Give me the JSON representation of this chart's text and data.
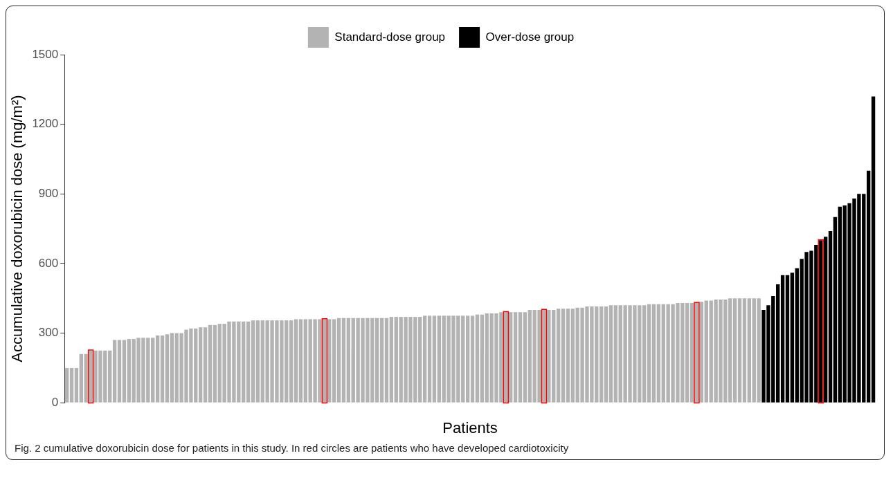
{
  "chart_data": {
    "type": "bar",
    "xlabel": "Patients",
    "ylabel": "Accumulative doxorubicin dose (mg/m²)",
    "ylim": [
      0,
      1500
    ],
    "yticks": [
      0,
      300,
      600,
      900,
      1200,
      1500
    ],
    "grid": false,
    "legend": "top",
    "stacked": true,
    "annotations": [
      "Fig. 2 cumulative doxorubicin dose for patients in this study. In red circles are patients who have developed cardiotoxicity"
    ],
    "categories": [
      null,
      null,
      null,
      null,
      null,
      null,
      null,
      null,
      null,
      null,
      null,
      null,
      null,
      null,
      null,
      null,
      null,
      null,
      null,
      null,
      null,
      null,
      null,
      null,
      null,
      null,
      null,
      null,
      null,
      null,
      null,
      null,
      null,
      null,
      null,
      null,
      null,
      null,
      null,
      null,
      null,
      null,
      null,
      null,
      null,
      null,
      null,
      null,
      null,
      null,
      null,
      null,
      null,
      null,
      null,
      null,
      null,
      null,
      null,
      null,
      null,
      null,
      null,
      null,
      null,
      null,
      null,
      null,
      null,
      null,
      null,
      null,
      null,
      null,
      null,
      null,
      null,
      null,
      null,
      null,
      null,
      null,
      null,
      null,
      null,
      null,
      null,
      null,
      null,
      null,
      null,
      null,
      null,
      null,
      null,
      null,
      null,
      null,
      null,
      null,
      null,
      null,
      null,
      null,
      null,
      null,
      null,
      null,
      null,
      null,
      null,
      null,
      null,
      null,
      null,
      null,
      null,
      null,
      null,
      null,
      null,
      null,
      null,
      null,
      null,
      null,
      null,
      null,
      null,
      null,
      null,
      null,
      null,
      null,
      null,
      null,
      null,
      null,
      null,
      null,
      null,
      null,
      null,
      null,
      null,
      null,
      null,
      null,
      null,
      null,
      null,
      null,
      null,
      null,
      null,
      null,
      null,
      null,
      null,
      null,
      null,
      null,
      null,
      null,
      null,
      null,
      null,
      null,
      null,
      null
    ],
    "series": [
      {
        "name": "Standard-dose group",
        "color": "#b3b3b3",
        "values": [
          150,
          150,
          150,
          210,
          210,
          225,
          225,
          225,
          225,
          225,
          270,
          270,
          270,
          275,
          275,
          280,
          280,
          280,
          280,
          290,
          290,
          295,
          300,
          300,
          300,
          315,
          320,
          320,
          325,
          325,
          335,
          335,
          340,
          340,
          350,
          350,
          350,
          350,
          350,
          355,
          355,
          355,
          355,
          355,
          355,
          355,
          355,
          355,
          360,
          360,
          360,
          360,
          360,
          360,
          360,
          360,
          360,
          365,
          365,
          365,
          365,
          365,
          365,
          365,
          365,
          365,
          365,
          365,
          370,
          370,
          370,
          370,
          370,
          370,
          370,
          375,
          375,
          375,
          375,
          375,
          375,
          375,
          375,
          375,
          375,
          375,
          380,
          380,
          385,
          385,
          385,
          390,
          390,
          390,
          390,
          390,
          390,
          400,
          400,
          400,
          400,
          400,
          400,
          405,
          405,
          405,
          405,
          410,
          410,
          415,
          415,
          415,
          415,
          415,
          420,
          420,
          420,
          420,
          420,
          420,
          420,
          420,
          425,
          425,
          425,
          425,
          425,
          425,
          430,
          430,
          430,
          430,
          430,
          435,
          440,
          440,
          445,
          445,
          445,
          450,
          450,
          450,
          450,
          450,
          450,
          450,
          null,
          null,
          null,
          null,
          null,
          null,
          null,
          null,
          null,
          null,
          null,
          null,
          null,
          null,
          null,
          null,
          null,
          null,
          null,
          null,
          null,
          null,
          null,
          null
        ],
        "colors": [
          "#b3b3b3",
          "#b3b3b3",
          "#b3b3b3",
          "#b3b3b3",
          "#b3b3b3",
          "#ff0000",
          "#b3b3b3",
          "#b3b3b3",
          "#b3b3b3",
          "#b3b3b3",
          "#b3b3b3",
          "#b3b3b3",
          "#b3b3b3",
          "#b3b3b3",
          "#b3b3b3",
          "#b3b3b3",
          "#b3b3b3",
          "#b3b3b3",
          "#b3b3b3",
          "#b3b3b3",
          "#b3b3b3",
          "#b3b3b3",
          "#b3b3b3",
          "#b3b3b3",
          "#b3b3b3",
          "#b3b3b3",
          "#b3b3b3",
          "#b3b3b3",
          "#b3b3b3",
          "#b3b3b3",
          "#b3b3b3",
          "#b3b3b3",
          "#b3b3b3",
          "#b3b3b3",
          "#b3b3b3",
          "#b3b3b3",
          "#b3b3b3",
          "#b3b3b3",
          "#b3b3b3",
          "#b3b3b3",
          "#b3b3b3",
          "#b3b3b3",
          "#b3b3b3",
          "#b3b3b3",
          "#b3b3b3",
          "#b3b3b3",
          "#b3b3b3",
          "#b3b3b3",
          "#b3b3b3",
          "#b3b3b3",
          "#b3b3b3",
          "#b3b3b3",
          "#b3b3b3",
          "#b3b3b3",
          "#ff0000",
          "#b3b3b3",
          "#b3b3b3",
          "#b3b3b3",
          "#b3b3b3",
          "#b3b3b3",
          "#b3b3b3",
          "#b3b3b3",
          "#b3b3b3",
          "#b3b3b3",
          "#b3b3b3",
          "#b3b3b3",
          "#b3b3b3",
          "#b3b3b3",
          "#b3b3b3",
          "#b3b3b3",
          "#b3b3b3",
          "#b3b3b3",
          "#b3b3b3",
          "#b3b3b3",
          "#b3b3b3",
          "#b3b3b3",
          "#b3b3b3",
          "#b3b3b3",
          "#b3b3b3",
          "#b3b3b3",
          "#b3b3b3",
          "#b3b3b3",
          "#b3b3b3",
          "#b3b3b3",
          "#b3b3b3",
          "#b3b3b3",
          "#b3b3b3",
          "#b3b3b3",
          "#b3b3b3",
          "#b3b3b3",
          "#b3b3b3",
          "#b3b3b3",
          "#ff0000",
          "#b3b3b3",
          "#b3b3b3",
          "#b3b3b3",
          "#b3b3b3",
          "#b3b3b3",
          "#b3b3b3",
          "#b3b3b3",
          "#ff0000",
          "#b3b3b3",
          "#b3b3b3",
          "#b3b3b3",
          "#b3b3b3",
          "#b3b3b3",
          "#b3b3b3",
          "#b3b3b3",
          "#b3b3b3",
          "#b3b3b3",
          "#b3b3b3",
          "#b3b3b3",
          "#b3b3b3",
          "#b3b3b3",
          "#b3b3b3",
          "#b3b3b3",
          "#b3b3b3",
          "#b3b3b3",
          "#b3b3b3",
          "#b3b3b3",
          "#b3b3b3",
          "#b3b3b3",
          "#b3b3b3",
          "#b3b3b3",
          "#b3b3b3",
          "#b3b3b3",
          "#b3b3b3",
          "#b3b3b3",
          "#b3b3b3",
          "#b3b3b3",
          "#b3b3b3",
          "#b3b3b3",
          "#ff0000",
          "#b3b3b3",
          "#b3b3b3",
          "#b3b3b3",
          "#b3b3b3",
          "#b3b3b3",
          "#b3b3b3",
          "#b3b3b3",
          "#b3b3b3",
          "#b3b3b3",
          "#b3b3b3",
          "#b3b3b3",
          "#b3b3b3",
          "#b3b3b3",
          null,
          null,
          null,
          null,
          null,
          null,
          null,
          null,
          null,
          null,
          null,
          null,
          null,
          null,
          null,
          null,
          null,
          null,
          null,
          null,
          null,
          null,
          null,
          null
        ]
      },
      {
        "name": "Over-dose group",
        "color": "#000000",
        "values": [
          null,
          null,
          null,
          null,
          null,
          null,
          null,
          null,
          null,
          null,
          null,
          null,
          null,
          null,
          null,
          null,
          null,
          null,
          null,
          null,
          null,
          null,
          null,
          null,
          null,
          null,
          null,
          null,
          null,
          null,
          null,
          null,
          null,
          null,
          null,
          null,
          null,
          null,
          null,
          null,
          null,
          null,
          null,
          null,
          null,
          null,
          null,
          null,
          null,
          null,
          null,
          null,
          null,
          null,
          null,
          null,
          null,
          null,
          null,
          null,
          null,
          null,
          null,
          null,
          null,
          null,
          null,
          null,
          null,
          null,
          null,
          null,
          null,
          null,
          null,
          null,
          null,
          null,
          null,
          null,
          null,
          null,
          null,
          null,
          null,
          null,
          null,
          null,
          null,
          null,
          null,
          null,
          null,
          null,
          null,
          null,
          null,
          null,
          null,
          null,
          null,
          null,
          null,
          null,
          null,
          null,
          null,
          null,
          null,
          null,
          null,
          null,
          null,
          null,
          null,
          null,
          null,
          null,
          null,
          null,
          null,
          null,
          null,
          null,
          null,
          null,
          null,
          null,
          null,
          null,
          null,
          null,
          null,
          null,
          null,
          null,
          null,
          null,
          null,
          null,
          null,
          null,
          null,
          null,
          null,
          null,
          400,
          420,
          460,
          510,
          550,
          550,
          560,
          580,
          620,
          650,
          655,
          680,
          700,
          715,
          740,
          800,
          845,
          850,
          860,
          880,
          900,
          900,
          1000,
          1320
        ],
        "colors": [
          null,
          null,
          null,
          null,
          null,
          null,
          null,
          null,
          null,
          null,
          null,
          null,
          null,
          null,
          null,
          null,
          null,
          null,
          null,
          null,
          null,
          null,
          null,
          null,
          null,
          null,
          null,
          null,
          null,
          null,
          null,
          null,
          null,
          null,
          null,
          null,
          null,
          null,
          null,
          null,
          null,
          null,
          null,
          null,
          null,
          null,
          null,
          null,
          null,
          null,
          null,
          null,
          null,
          null,
          null,
          null,
          null,
          null,
          null,
          null,
          null,
          null,
          null,
          null,
          null,
          null,
          null,
          null,
          null,
          null,
          null,
          null,
          null,
          null,
          null,
          null,
          null,
          null,
          null,
          null,
          null,
          null,
          null,
          null,
          null,
          null,
          null,
          null,
          null,
          null,
          null,
          null,
          null,
          null,
          null,
          null,
          null,
          null,
          null,
          null,
          null,
          null,
          null,
          null,
          null,
          null,
          null,
          null,
          null,
          null,
          null,
          null,
          null,
          null,
          null,
          null,
          null,
          null,
          null,
          null,
          null,
          null,
          null,
          null,
          null,
          null,
          null,
          null,
          null,
          null,
          null,
          null,
          null,
          null,
          null,
          null,
          null,
          null,
          null,
          null,
          null,
          null,
          null,
          null,
          null,
          null,
          "#000000",
          "#000000",
          "#000000",
          "#000000",
          "#000000",
          "#000000",
          "#000000",
          "#000000",
          "#000000",
          "#000000",
          "#000000",
          "#000000",
          "#ff0000",
          "#000000",
          "#000000",
          "#000000",
          "#000000",
          "#000000",
          "#000000",
          "#000000",
          "#000000",
          "#000000",
          "#000000",
          "#000000"
        ]
      }
    ]
  }
}
